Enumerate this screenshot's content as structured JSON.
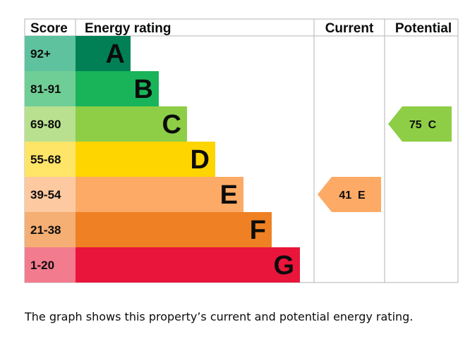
{
  "chart_data": {
    "type": "bar",
    "title": "",
    "headers": {
      "score": "Score",
      "rating": "Energy rating",
      "current": "Current",
      "potential": "Potential"
    },
    "bands": [
      {
        "letter": "A",
        "score": "92+",
        "color": "#008054",
        "tint": "#5fc29f"
      },
      {
        "letter": "B",
        "score": "81-91",
        "color": "#19b459",
        "tint": "#6fce95"
      },
      {
        "letter": "C",
        "score": "69-80",
        "color": "#8dce46",
        "tint": "#b8e08f"
      },
      {
        "letter": "D",
        "score": "55-68",
        "color": "#ffd500",
        "tint": "#ffe567"
      },
      {
        "letter": "E",
        "score": "39-54",
        "color": "#fcaa65",
        "tint": "#fdc9a0"
      },
      {
        "letter": "F",
        "score": "21-38",
        "color": "#ef8023",
        "tint": "#f5ae73"
      },
      {
        "letter": "G",
        "score": "1-20",
        "color": "#e9153b",
        "tint": "#f27b8e"
      }
    ],
    "current": {
      "value": 41,
      "band": "E",
      "label": "41  E",
      "color": "#fcaa65"
    },
    "potential": {
      "value": 75,
      "band": "C",
      "label": "75  C",
      "color": "#8dce46"
    }
  },
  "caption": "The graph shows this property’s current and potential energy rating."
}
